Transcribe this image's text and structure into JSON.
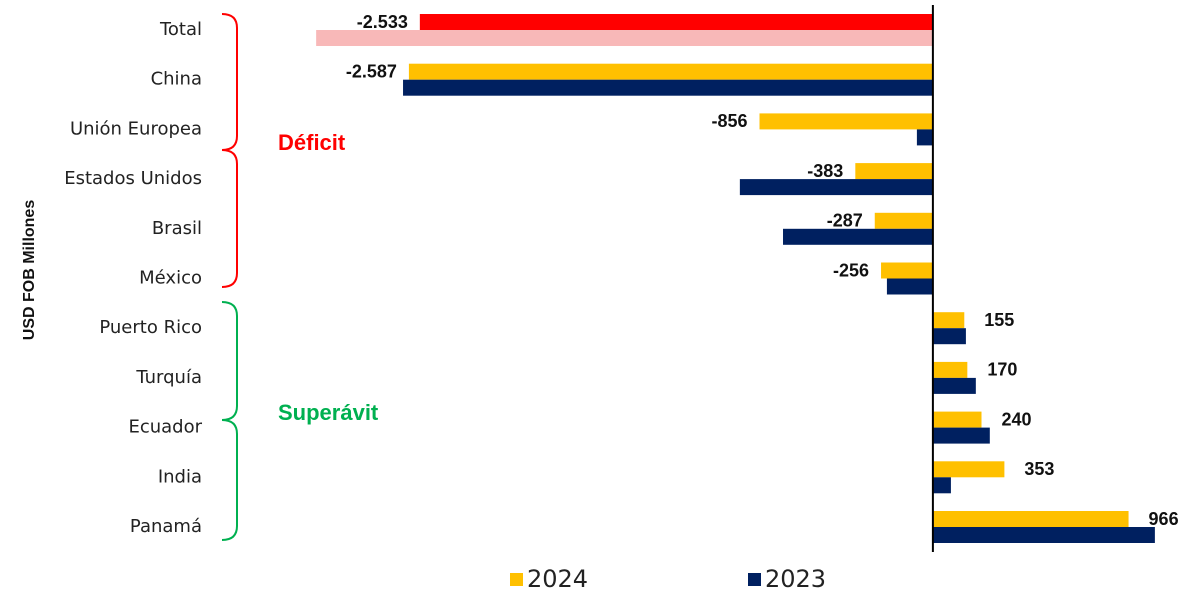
{
  "chart_data": {
    "type": "hbar",
    "y_axis_label": "USD FOB Millones",
    "categories": [
      "Total",
      "China",
      "Unión Europea",
      "Estados Unidos",
      "Brasil",
      "México",
      "Puerto Rico",
      "Turquía",
      "Ecuador",
      "India",
      "Panamá"
    ],
    "series": [
      {
        "name": "2024",
        "color": "#ffc000",
        "colors": [
          "#ff0000",
          "#ffc000",
          "#ffc000",
          "#ffc000",
          "#ffc000",
          "#ffc000",
          "#ffc000",
          "#ffc000",
          "#ffc000",
          "#ffc000",
          "#ffc000"
        ],
        "values": [
          -2533,
          -2587,
          -856,
          -383,
          -287,
          -256,
          155,
          170,
          240,
          353,
          966
        ],
        "value_labels": [
          "-2.533",
          "-2.587",
          "-856",
          "-383",
          "-287",
          "-256",
          "155",
          "170",
          "240",
          "353",
          "966"
        ]
      },
      {
        "name": "2023",
        "color": "#002060",
        "colors": [
          "#f8b8b8",
          "#002060",
          "#002060",
          "#002060",
          "#002060",
          "#002060",
          "#002060",
          "#002060",
          "#002060",
          "#002060",
          "#002060"
        ],
        "values": [
          -3045,
          -2616,
          -79,
          -953,
          -740,
          -227,
          163,
          212,
          281,
          89,
          1096
        ]
      }
    ],
    "xlim": [
      -3100,
      1220
    ],
    "annotations": [
      {
        "text": "Déficit",
        "color": "#ff0000"
      },
      {
        "text": "Superávit",
        "color": "#00b050"
      }
    ]
  }
}
